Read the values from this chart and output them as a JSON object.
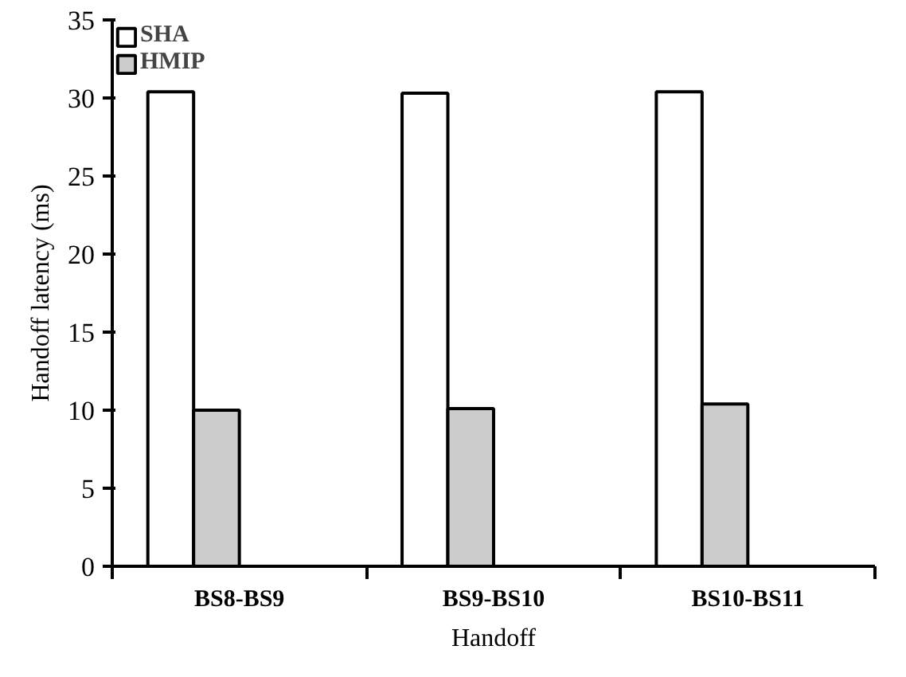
{
  "chart_data": {
    "type": "bar",
    "xlabel": "Handoff",
    "ylabel": "Handoff latency (ms)",
    "categories": [
      "BS8-BS9",
      "BS9-BS10",
      "BS10-BS11"
    ],
    "series": [
      {
        "name": "SHA",
        "color": "#ffffff",
        "values": [
          30.4,
          30.3,
          30.4
        ]
      },
      {
        "name": "HMIP",
        "color": "#cccccc",
        "values": [
          10.0,
          10.1,
          10.4
        ]
      }
    ],
    "ylim": [
      0,
      35
    ],
    "yticks": [
      0,
      5,
      10,
      15,
      20,
      25,
      30,
      35
    ],
    "grid": false,
    "legend": "top left"
  }
}
